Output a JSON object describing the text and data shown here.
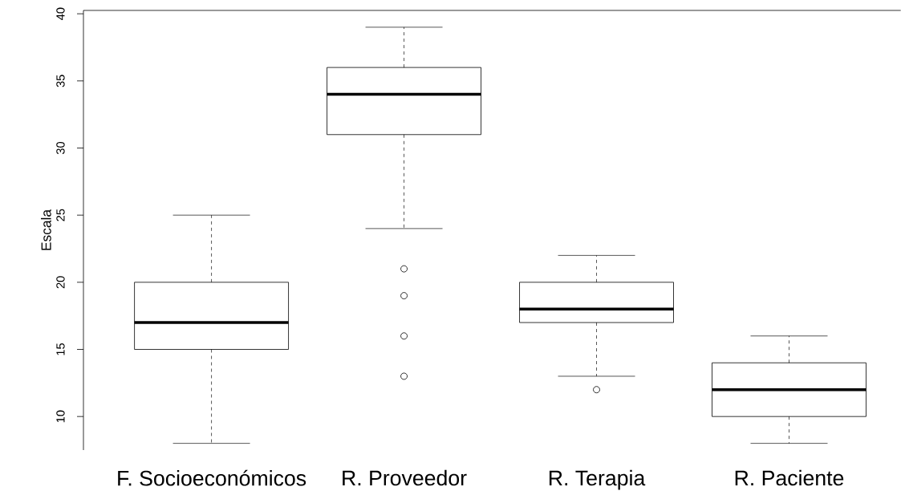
{
  "chart_data": {
    "type": "box",
    "ylabel": "Escala",
    "categories": [
      "F. Socioeconómicos",
      "R. Proveedor",
      "R. Terapia",
      "R. Paciente"
    ],
    "boxes": [
      {
        "low": 8,
        "q1": 15,
        "median": 17,
        "q3": 20,
        "high": 25
      },
      {
        "low": 24,
        "q1": 31,
        "median": 34,
        "q3": 36,
        "high": 39,
        "outliers": [
          21,
          19,
          16,
          13
        ]
      },
      {
        "low": 13,
        "q1": 17,
        "median": 18,
        "q3": 20,
        "high": 22,
        "outliers": [
          12
        ]
      },
      {
        "low": 8,
        "q1": 10,
        "median": 12,
        "q3": 14,
        "high": 16
      }
    ],
    "color": "#000000",
    "ylim": [
      7.5,
      40.25
    ],
    "yticks": [
      10,
      15,
      20,
      25,
      30,
      35,
      40
    ],
    "grid": false
  }
}
